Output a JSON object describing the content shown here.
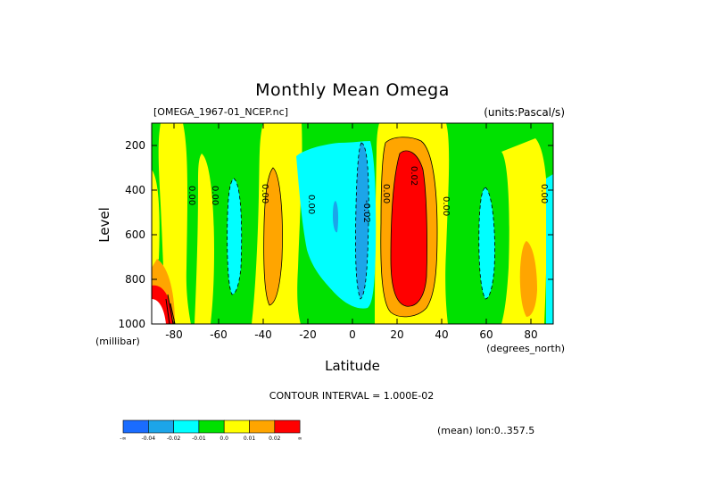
{
  "chart_data": {
    "type": "heatmap",
    "title": "Monthly Mean Omega",
    "file_label": "[OMEGA_1967-01_NCEP.nc]",
    "units_label": "(units:Pascal/s)",
    "xlabel": "Latitude",
    "x_units": "(degrees_north)",
    "ylabel": "Level",
    "y_units": "(millibar)",
    "xlim": [
      -90,
      90
    ],
    "ylim": [
      1000,
      100
    ],
    "x_ticks": [
      "-80",
      "-60",
      "-40",
      "-20",
      "0",
      "20",
      "40",
      "60",
      "80"
    ],
    "y_ticks": [
      "200",
      "400",
      "600",
      "800",
      "1000"
    ],
    "contour_interval": "CONTOUR INTERVAL = 1.000E-02",
    "mean_label": "(mean) lon:0..357.5",
    "contour_labels": [
      "0.00",
      "0.00",
      "0.00",
      "0.00",
      "-0.02",
      "0.00",
      "0.02",
      "0.00",
      "0.00"
    ],
    "colorbar": {
      "labels": [
        "-∞",
        "-0.04",
        "-0.02",
        "-0.01",
        "0.0",
        "0.01",
        "0.02",
        "∞"
      ],
      "colors": [
        "#1a6cff",
        "#1ca5e9",
        "#00ffff",
        "#00e100",
        "#ffff00",
        "#ffa500",
        "#ff0000"
      ]
    },
    "regions_note_free": true
  }
}
